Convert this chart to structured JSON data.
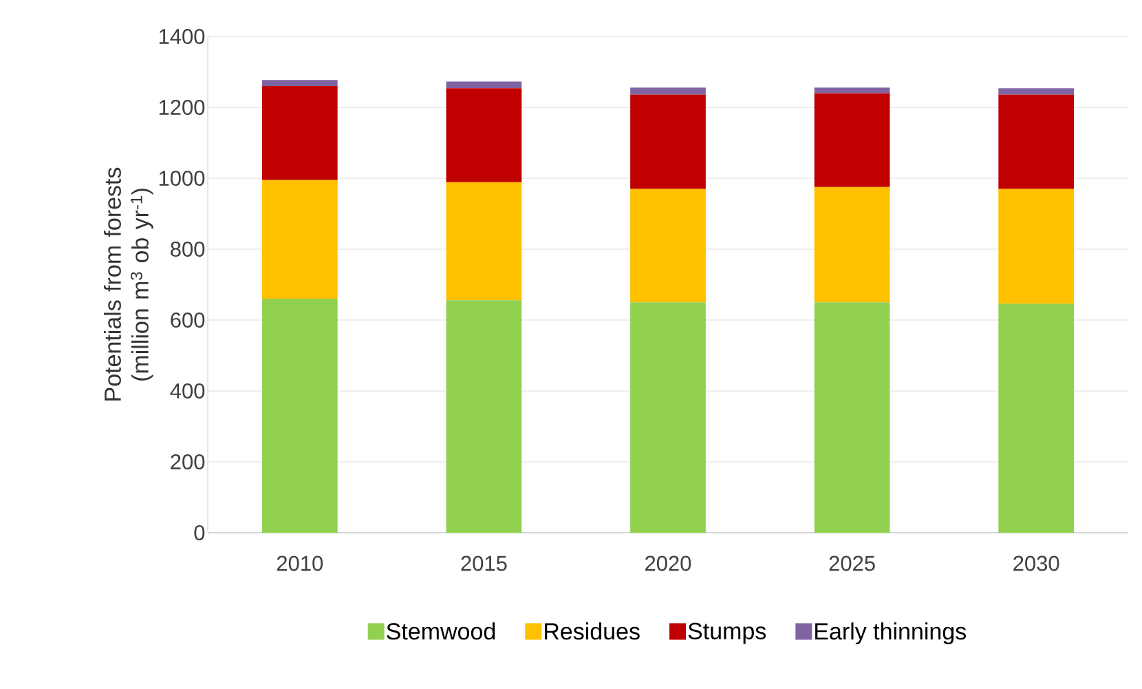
{
  "chart_data": {
    "type": "bar",
    "stacked": true,
    "ylabel": "Potentials from forests (million m$^{3}$ ob yr$^{-1}$)",
    "categories": [
      "2010",
      "2015",
      "2020",
      "2025",
      "2030"
    ],
    "series": [
      {
        "name": "Stemwood",
        "color": "#92d050",
        "values": [
          660,
          656,
          650,
          650,
          646
        ]
      },
      {
        "name": "Residues",
        "color": "#ffc000",
        "values": [
          335,
          333,
          320,
          325,
          324
        ]
      },
      {
        "name": "Stumps",
        "color": "#c00000",
        "values": [
          265,
          265,
          266,
          265,
          266
        ]
      },
      {
        "name": "Early thinnings",
        "color": "#8064a2",
        "values": [
          17,
          19,
          20,
          16,
          18
        ]
      }
    ],
    "ylim": [
      0,
      1400
    ],
    "yticks": [
      0,
      200,
      400,
      600,
      800,
      1000,
      1200,
      1400
    ],
    "grid": "y",
    "legend": "bottom"
  }
}
